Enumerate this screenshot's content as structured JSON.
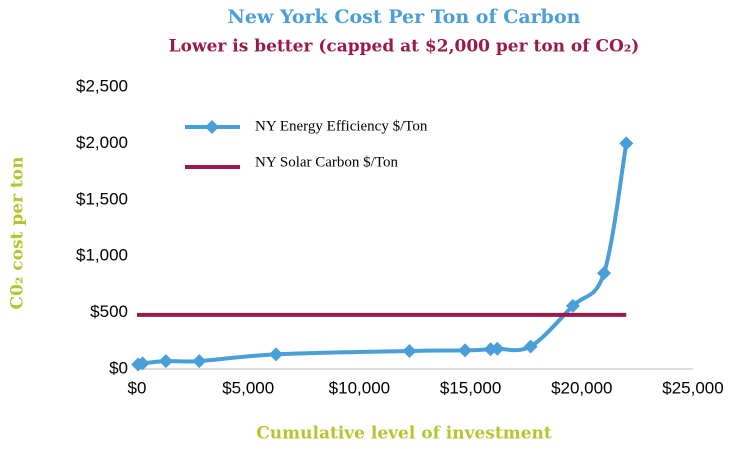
{
  "chart_data": {
    "type": "line",
    "title": "New York Cost Per Ton of Carbon",
    "subtitle": "Lower is better (capped at $2,000 per ton of CO₂)",
    "x_label": "Cumulative level of investment",
    "y_label": "C0₂ cost per ton",
    "series": [
      {
        "name": "NY Energy Efficiency $/Ton",
        "color": "#4a9fd8",
        "marker": "diamond",
        "x": [
          50,
          250,
          1300,
          2800,
          6250,
          12250,
          14750,
          15900,
          16200,
          17700,
          19600,
          21000,
          22000
        ],
        "values": [
          40,
          50,
          70,
          70,
          130,
          160,
          165,
          175,
          180,
          200,
          560,
          850,
          2000
        ]
      },
      {
        "name": "NY Solar Carbon $/Ton",
        "color": "#9b1a4b",
        "x": [
          0,
          22000
        ],
        "values": [
          480,
          480
        ]
      }
    ],
    "xlim": [
      0,
      25000
    ],
    "xticks": [
      {
        "value": 0,
        "label": "$0"
      },
      {
        "value": 5000,
        "label": "$5,000"
      },
      {
        "value": 10000,
        "label": "$10,000"
      },
      {
        "value": 15000,
        "label": "$15,000"
      },
      {
        "value": 20000,
        "label": "$20,000"
      },
      {
        "value": 25000,
        "label": "$25,000"
      }
    ],
    "ylim": [
      0,
      2500
    ],
    "yticks": [
      {
        "value": 0,
        "label": "$0"
      },
      {
        "value": 500,
        "label": "$500"
      },
      {
        "value": 1000,
        "label": "$1,000"
      },
      {
        "value": 1500,
        "label": "$1,500"
      },
      {
        "value": 2000,
        "label": "$2,000"
      },
      {
        "value": 2500,
        "label": "$2,500"
      }
    ],
    "legend": "top-left"
  }
}
